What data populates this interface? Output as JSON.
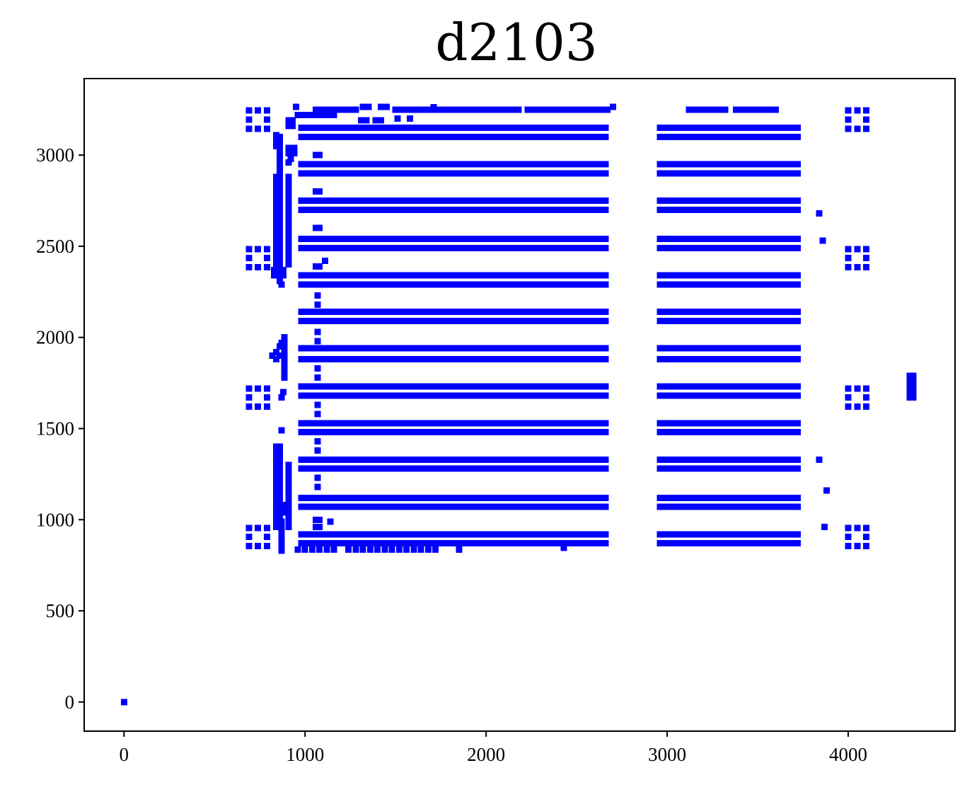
{
  "chart_data": {
    "type": "scatter",
    "title": "d2103",
    "xlabel": "",
    "ylabel": "",
    "xlim": [
      -220,
      4590
    ],
    "ylim": [
      -160,
      3420
    ],
    "grid": false,
    "marker": "square",
    "color": "#0000ff",
    "x_ticks": [
      {
        "value": 0,
        "label": "0"
      },
      {
        "value": 1000,
        "label": "1000"
      },
      {
        "value": 2000,
        "label": "2000"
      },
      {
        "value": 3000,
        "label": "3000"
      },
      {
        "value": 4000,
        "label": "4000"
      }
    ],
    "y_ticks": [
      {
        "value": 0,
        "label": "0"
      },
      {
        "value": 500,
        "label": "500"
      },
      {
        "value": 1000,
        "label": "1000"
      },
      {
        "value": 1500,
        "label": "1500"
      },
      {
        "value": 2000,
        "label": "2000"
      },
      {
        "value": 2500,
        "label": "2500"
      },
      {
        "value": 3000,
        "label": "3000"
      }
    ],
    "pad_rows": {
      "description": "dense horizontal rows of pads (pairs of rows per group)",
      "y_values": [
        3150,
        3100,
        2950,
        2900,
        2750,
        2700,
        2540,
        2490,
        2340,
        2290,
        2140,
        2090,
        1940,
        1880,
        1730,
        1680,
        1530,
        1480,
        1330,
        1280,
        1120,
        1070,
        920,
        870
      ],
      "segments": [
        {
          "x_start": 980,
          "x_end": 2660,
          "step": 20
        },
        {
          "x_start": 2960,
          "x_end": 3730,
          "step": 20
        }
      ]
    },
    "top_segments": [
      {
        "y": 3250,
        "x_start": 1060,
        "x_end": 1280,
        "step": 20
      },
      {
        "y": 3250,
        "x_start": 1500,
        "x_end": 2180,
        "step": 20
      },
      {
        "y": 3250,
        "x_start": 2230,
        "x_end": 2670,
        "step": 20
      },
      {
        "y": 3250,
        "x_start": 3120,
        "x_end": 3330,
        "step": 20
      },
      {
        "y": 3250,
        "x_start": 3380,
        "x_end": 3600,
        "step": 20
      },
      {
        "y": 3220,
        "x_start": 960,
        "x_end": 1160,
        "step": 20
      },
      {
        "y": 835,
        "x_start": 960,
        "x_end": 1180,
        "step": 40
      },
      {
        "y": 835,
        "x_start": 1240,
        "x_end": 1720,
        "step": 40
      }
    ],
    "vertical_segments": [
      {
        "x": 840,
        "y_start": 2400,
        "y_end": 2880,
        "step": 20
      },
      {
        "x": 860,
        "y_start": 2400,
        "y_end": 3110,
        "step": 20
      },
      {
        "x": 910,
        "y_start": 2400,
        "y_end": 2880,
        "step": 20
      },
      {
        "x": 840,
        "y_start": 960,
        "y_end": 1390,
        "step": 20
      },
      {
        "x": 860,
        "y_start": 960,
        "y_end": 1390,
        "step": 20
      },
      {
        "x": 910,
        "y_start": 960,
        "y_end": 1300,
        "step": 20
      },
      {
        "x": 885,
        "y_start": 1780,
        "y_end": 2000,
        "step": 20
      },
      {
        "x": 870,
        "y_start": 830,
        "y_end": 1000,
        "step": 20
      },
      {
        "x": 1070,
        "y_start": 2180,
        "y_end": 2240,
        "step": 50
      },
      {
        "x": 1070,
        "y_start": 1980,
        "y_end": 2040,
        "step": 50
      },
      {
        "x": 1070,
        "y_start": 1780,
        "y_end": 1830,
        "step": 50
      },
      {
        "x": 1070,
        "y_start": 1580,
        "y_end": 1630,
        "step": 50
      },
      {
        "x": 1070,
        "y_start": 1380,
        "y_end": 1430,
        "step": 50
      },
      {
        "x": 1070,
        "y_start": 1180,
        "y_end": 1230,
        "step": 50
      },
      {
        "x": 4340,
        "y_start": 1670,
        "y_end": 1800,
        "step": 20
      },
      {
        "x": 4360,
        "y_start": 1670,
        "y_end": 1800,
        "step": 20
      }
    ],
    "square_clusters": {
      "description": "3x3 hollow square patterns",
      "centers": [
        {
          "x": 740,
          "y": 3195
        },
        {
          "x": 740,
          "y": 2435
        },
        {
          "x": 740,
          "y": 1670
        },
        {
          "x": 740,
          "y": 905
        },
        {
          "x": 4050,
          "y": 3195
        },
        {
          "x": 4050,
          "y": 2435
        },
        {
          "x": 4050,
          "y": 1670
        },
        {
          "x": 4050,
          "y": 905
        }
      ],
      "spacing": 50
    },
    "points": [
      {
        "x": 0,
        "y": 0
      },
      {
        "x": 950,
        "y": 3265
      },
      {
        "x": 1320,
        "y": 3265
      },
      {
        "x": 1350,
        "y": 3265
      },
      {
        "x": 1420,
        "y": 3265
      },
      {
        "x": 1450,
        "y": 3265
      },
      {
        "x": 1710,
        "y": 3262
      },
      {
        "x": 2700,
        "y": 3265
      },
      {
        "x": 1310,
        "y": 3190
      },
      {
        "x": 1340,
        "y": 3190
      },
      {
        "x": 1390,
        "y": 3190
      },
      {
        "x": 1420,
        "y": 3190
      },
      {
        "x": 1510,
        "y": 3200
      },
      {
        "x": 1580,
        "y": 3200
      },
      {
        "x": 910,
        "y": 3190
      },
      {
        "x": 930,
        "y": 3190
      },
      {
        "x": 910,
        "y": 3160
      },
      {
        "x": 930,
        "y": 3160
      },
      {
        "x": 910,
        "y": 3040
      },
      {
        "x": 940,
        "y": 3040
      },
      {
        "x": 910,
        "y": 3010
      },
      {
        "x": 940,
        "y": 3010
      },
      {
        "x": 920,
        "y": 2980
      },
      {
        "x": 910,
        "y": 2960
      },
      {
        "x": 840,
        "y": 3110
      },
      {
        "x": 840,
        "y": 3080
      },
      {
        "x": 840,
        "y": 3050
      },
      {
        "x": 1060,
        "y": 3000
      },
      {
        "x": 1080,
        "y": 3000
      },
      {
        "x": 1060,
        "y": 2800
      },
      {
        "x": 1080,
        "y": 2800
      },
      {
        "x": 1060,
        "y": 2600
      },
      {
        "x": 1080,
        "y": 2600
      },
      {
        "x": 840,
        "y": 2630
      },
      {
        "x": 860,
        "y": 2630
      },
      {
        "x": 1060,
        "y": 2390
      },
      {
        "x": 1080,
        "y": 2390
      },
      {
        "x": 1110,
        "y": 2420
      },
      {
        "x": 830,
        "y": 2370
      },
      {
        "x": 860,
        "y": 2370
      },
      {
        "x": 880,
        "y": 2370
      },
      {
        "x": 830,
        "y": 2340
      },
      {
        "x": 860,
        "y": 2340
      },
      {
        "x": 880,
        "y": 2340
      },
      {
        "x": 860,
        "y": 2310
      },
      {
        "x": 870,
        "y": 2290
      },
      {
        "x": 820,
        "y": 1900
      },
      {
        "x": 840,
        "y": 1920
      },
      {
        "x": 860,
        "y": 1950
      },
      {
        "x": 870,
        "y": 1970
      },
      {
        "x": 840,
        "y": 1880
      },
      {
        "x": 860,
        "y": 1900
      },
      {
        "x": 880,
        "y": 1700
      },
      {
        "x": 870,
        "y": 1670
      },
      {
        "x": 870,
        "y": 1490
      },
      {
        "x": 840,
        "y": 1400
      },
      {
        "x": 860,
        "y": 1400
      },
      {
        "x": 880,
        "y": 1080
      },
      {
        "x": 880,
        "y": 1060
      },
      {
        "x": 890,
        "y": 1040
      },
      {
        "x": 1060,
        "y": 1000
      },
      {
        "x": 1080,
        "y": 1000
      },
      {
        "x": 1060,
        "y": 960
      },
      {
        "x": 1080,
        "y": 960
      },
      {
        "x": 1140,
        "y": 990
      },
      {
        "x": 3840,
        "y": 2680
      },
      {
        "x": 3860,
        "y": 2530
      },
      {
        "x": 3840,
        "y": 1330
      },
      {
        "x": 3880,
        "y": 1160
      },
      {
        "x": 3870,
        "y": 960
      },
      {
        "x": 2430,
        "y": 845
      },
      {
        "x": 1850,
        "y": 835
      }
    ]
  }
}
